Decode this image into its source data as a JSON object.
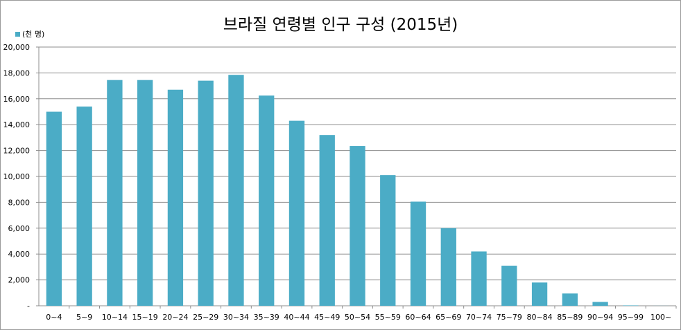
{
  "chart_data": {
    "type": "bar",
    "title": "브라질 연령별 인구 구성 (2015년)",
    "legend": {
      "label": "(천 명)",
      "placement": "top-left"
    },
    "color": "#4BACC6",
    "categories": [
      "0~4",
      "5~9",
      "10~14",
      "15~19",
      "20~24",
      "25~29",
      "30~34",
      "35~39",
      "40~44",
      "45~49",
      "50~54",
      "55~59",
      "60~64",
      "65~69",
      "70~74",
      "75~79",
      "80~84",
      "85~89",
      "90~94",
      "95~99",
      "100~"
    ],
    "values": [
      15000,
      15400,
      17450,
      17450,
      16700,
      17400,
      17850,
      16250,
      14300,
      13200,
      12350,
      10100,
      8050,
      6000,
      4200,
      3100,
      1800,
      950,
      300,
      30,
      5
    ],
    "ylim": [
      0,
      20000
    ],
    "yticks": [
      "-",
      "2,000",
      "4,000",
      "6,000",
      "8,000",
      "10,000",
      "12,000",
      "14,000",
      "16,000",
      "18,000",
      "20,000"
    ],
    "grid": true,
    "xlabel": "",
    "ylabel": ""
  }
}
